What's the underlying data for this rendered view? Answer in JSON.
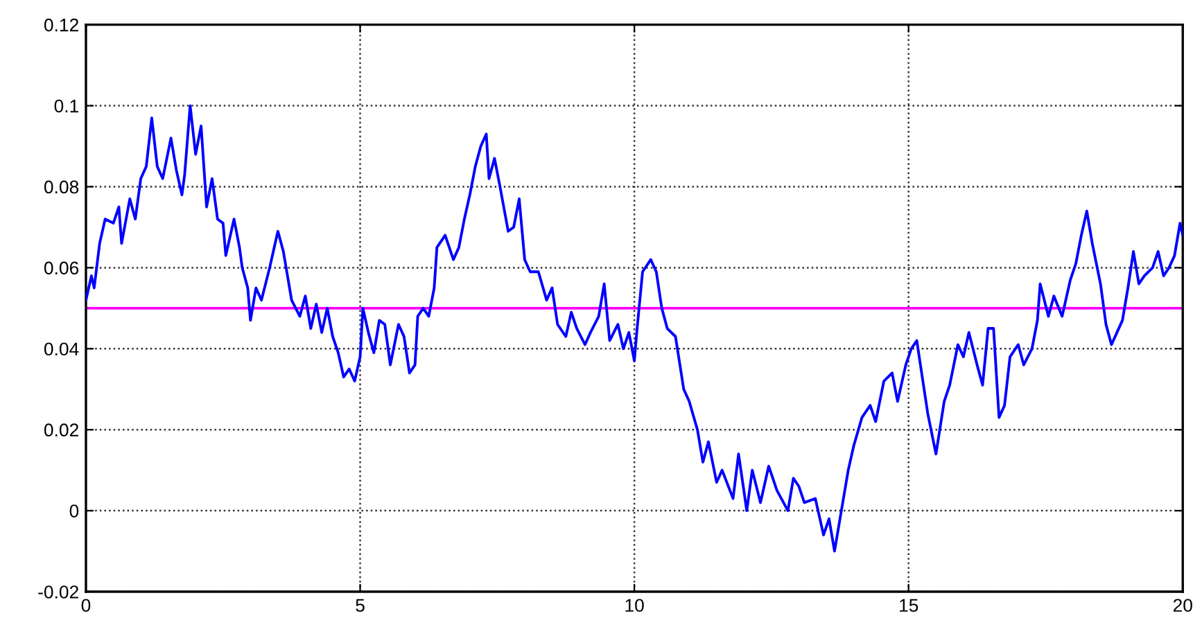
{
  "chart_data": {
    "type": "line",
    "series": [
      {
        "color": "#0000ff",
        "x": [
          0,
          0.1,
          0.15,
          0.25,
          0.35,
          0.5,
          0.6,
          0.65,
          0.8,
          0.9,
          1.0,
          1.1,
          1.2,
          1.3,
          1.4,
          1.55,
          1.65,
          1.75,
          1.8,
          1.9,
          2.0,
          2.1,
          2.2,
          2.3,
          2.4,
          2.5,
          2.55,
          2.7,
          2.8,
          2.85,
          2.95,
          3.0,
          3.1,
          3.2,
          3.35,
          3.5,
          3.6,
          3.75,
          3.9,
          4.0,
          4.1,
          4.2,
          4.3,
          4.4,
          4.5,
          4.6,
          4.7,
          4.8,
          4.9,
          5.0,
          5.05,
          5.15,
          5.25,
          5.35,
          5.45,
          5.55,
          5.7,
          5.8,
          5.9,
          6.0,
          6.05,
          6.15,
          6.25,
          6.35,
          6.4,
          6.55,
          6.7,
          6.8,
          6.9,
          7.0,
          7.1,
          7.2,
          7.3,
          7.35,
          7.45,
          7.55,
          7.7,
          7.8,
          7.9,
          8.0,
          8.1,
          8.25,
          8.4,
          8.5,
          8.6,
          8.75,
          8.85,
          8.95,
          9.1,
          9.2,
          9.35,
          9.45,
          9.55,
          9.7,
          9.8,
          9.9,
          10.0,
          10.05,
          10.15,
          10.3,
          10.4,
          10.5,
          10.6,
          10.75,
          10.9,
          11.0,
          11.15,
          11.25,
          11.35,
          11.5,
          11.6,
          11.8,
          11.9,
          12.05,
          12.15,
          12.3,
          12.45,
          12.6,
          12.8,
          12.9,
          13.0,
          13.1,
          13.3,
          13.45,
          13.55,
          13.65,
          13.75,
          13.9,
          14.0,
          14.15,
          14.3,
          14.4,
          14.55,
          14.7,
          14.8,
          14.95,
          15.05,
          15.15,
          15.25,
          15.35,
          15.5,
          15.65,
          15.75,
          15.9,
          16.0,
          16.1,
          16.25,
          16.35,
          16.45,
          16.55,
          16.65,
          16.75,
          16.85,
          17.0,
          17.1,
          17.25,
          17.35,
          17.4,
          17.55,
          17.65,
          17.8,
          17.95,
          18.05,
          18.15,
          18.25,
          18.35,
          18.5,
          18.6,
          18.7,
          18.8,
          18.9,
          19.0,
          19.1,
          19.2,
          19.3,
          19.45,
          19.55,
          19.65,
          19.75,
          19.85,
          19.95,
          20.0
        ],
        "values": [
          0.052,
          0.058,
          0.055,
          0.066,
          0.072,
          0.071,
          0.075,
          0.066,
          0.077,
          0.072,
          0.082,
          0.085,
          0.097,
          0.085,
          0.082,
          0.092,
          0.084,
          0.078,
          0.083,
          0.1,
          0.088,
          0.095,
          0.075,
          0.082,
          0.072,
          0.071,
          0.063,
          0.072,
          0.065,
          0.06,
          0.055,
          0.047,
          0.055,
          0.052,
          0.06,
          0.069,
          0.064,
          0.052,
          0.048,
          0.053,
          0.045,
          0.051,
          0.044,
          0.05,
          0.043,
          0.039,
          0.033,
          0.035,
          0.032,
          0.038,
          0.05,
          0.044,
          0.039,
          0.047,
          0.046,
          0.036,
          0.046,
          0.043,
          0.034,
          0.036,
          0.048,
          0.05,
          0.048,
          0.055,
          0.065,
          0.068,
          0.062,
          0.065,
          0.072,
          0.078,
          0.085,
          0.09,
          0.093,
          0.082,
          0.087,
          0.08,
          0.069,
          0.07,
          0.077,
          0.062,
          0.059,
          0.059,
          0.052,
          0.055,
          0.046,
          0.043,
          0.049,
          0.045,
          0.041,
          0.044,
          0.048,
          0.056,
          0.042,
          0.046,
          0.04,
          0.044,
          0.037,
          0.045,
          0.059,
          0.062,
          0.059,
          0.05,
          0.045,
          0.043,
          0.03,
          0.027,
          0.02,
          0.012,
          0.017,
          0.007,
          0.01,
          0.003,
          0.014,
          0.0,
          0.01,
          0.002,
          0.011,
          0.005,
          0.0,
          0.008,
          0.006,
          0.002,
          0.003,
          -0.006,
          -0.002,
          -0.01,
          -0.002,
          0.01,
          0.016,
          0.023,
          0.026,
          0.022,
          0.032,
          0.034,
          0.027,
          0.036,
          0.04,
          0.042,
          0.033,
          0.024,
          0.014,
          0.027,
          0.031,
          0.041,
          0.038,
          0.044,
          0.036,
          0.031,
          0.045,
          0.045,
          0.023,
          0.026,
          0.038,
          0.041,
          0.036,
          0.04,
          0.047,
          0.056,
          0.048,
          0.053,
          0.048,
          0.057,
          0.061,
          0.068,
          0.074,
          0.066,
          0.056,
          0.046,
          0.041,
          0.044,
          0.047,
          0.055,
          0.064,
          0.056,
          0.058,
          0.06,
          0.064,
          0.058,
          0.06,
          0.063,
          0.071,
          0.068
        ]
      }
    ],
    "xlim": [
      0,
      20
    ],
    "xticks": [
      0,
      5,
      10,
      15,
      20
    ],
    "ylim": [
      -0.02,
      0.12
    ],
    "yticks": [
      -0.02,
      0,
      0.02,
      0.04,
      0.06,
      0.08,
      0.1,
      0.12
    ],
    "grid": true,
    "line_style": "solid",
    "ref_lines": [
      {
        "axis": "y",
        "value": 0.05,
        "color": "#ff00ff"
      }
    ]
  }
}
